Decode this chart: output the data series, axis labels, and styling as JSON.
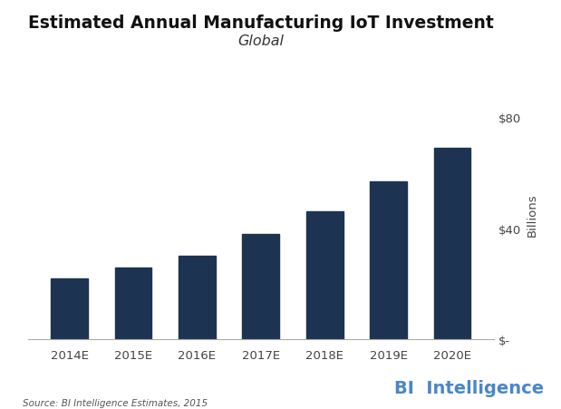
{
  "categories": [
    "2014E",
    "2015E",
    "2016E",
    "2017E",
    "2018E",
    "2019E",
    "2020E"
  ],
  "values": [
    22,
    26,
    30,
    38,
    46,
    57,
    69
  ],
  "bar_color": "#1d3352",
  "title": "Estimated Annual Manufacturing IoT Investment",
  "subtitle": "Global",
  "ylabel_right": "Billions",
  "yticks": [
    0,
    40,
    80
  ],
  "ytick_labels": [
    "$-",
    "$40",
    "$80"
  ],
  "ylim": [
    0,
    90
  ],
  "source_text": "Source: BI Intelligence Estimates, 2015",
  "watermark_text": "BI  Intelligence",
  "background_color": "#ffffff",
  "title_fontsize": 13.5,
  "subtitle_fontsize": 11.5,
  "bar_width": 0.58
}
